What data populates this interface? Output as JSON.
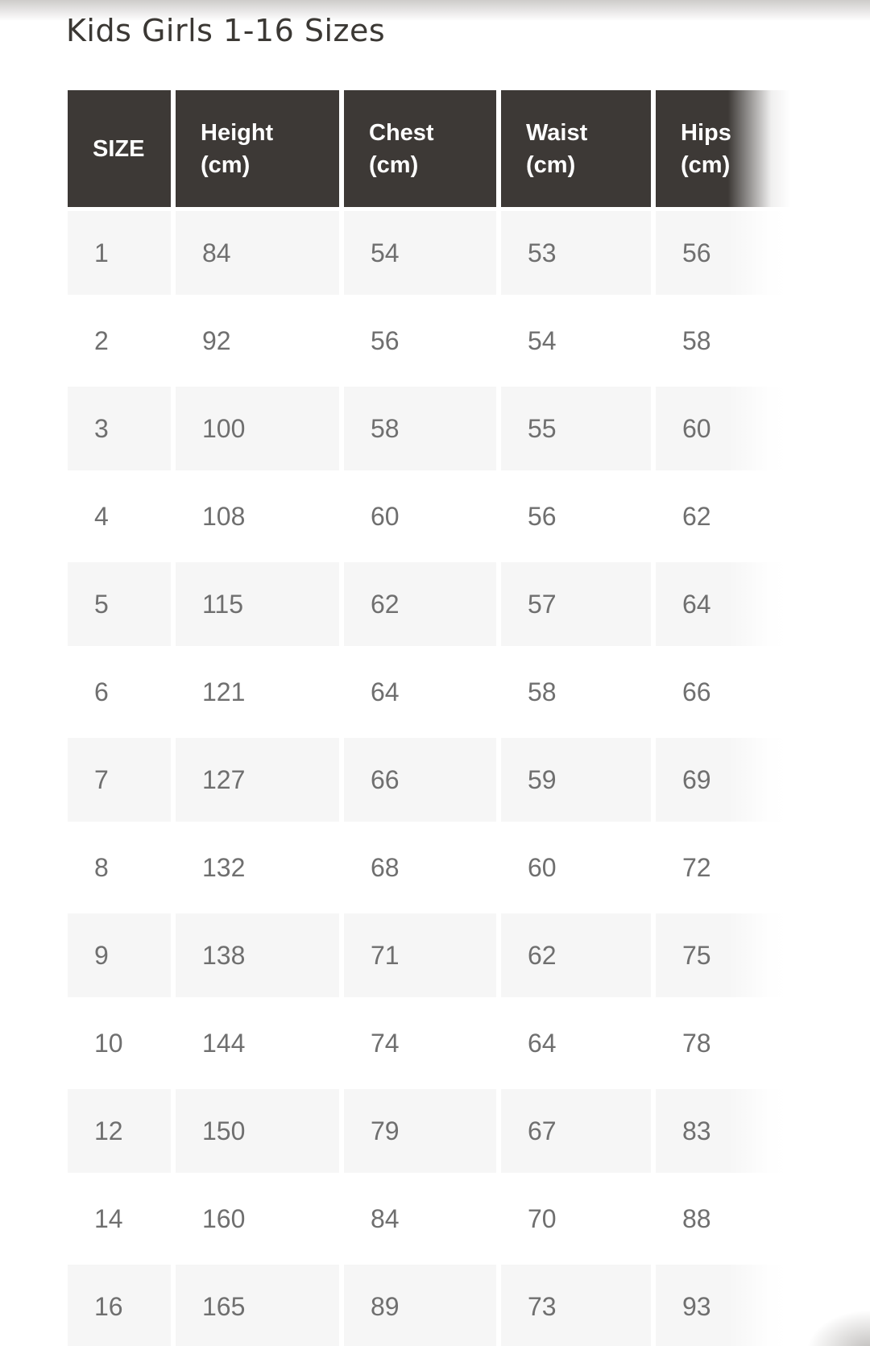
{
  "page": {
    "title": "Kids Girls 1-16 Sizes"
  },
  "colors": {
    "header_bg": "#3d3936",
    "header_text": "#ffffff",
    "row_alt_bg": "#f6f6f6",
    "row_bg": "#ffffff",
    "cell_text": "#6f6f6f",
    "title_text": "#3b3834"
  },
  "table": {
    "headers": [
      {
        "label": "SIZE",
        "unit": ""
      },
      {
        "label": "Height",
        "unit": "(cm)"
      },
      {
        "label": "Chest",
        "unit": "(cm)"
      },
      {
        "label": "Waist",
        "unit": "(cm)"
      },
      {
        "label": "Hips",
        "unit": "(cm)"
      }
    ],
    "rows": [
      {
        "cells": [
          "1",
          "84",
          "54",
          "53",
          "56"
        ]
      },
      {
        "cells": [
          "2",
          "92",
          "56",
          "54",
          "58"
        ]
      },
      {
        "cells": [
          "3",
          "100",
          "58",
          "55",
          "60"
        ]
      },
      {
        "cells": [
          "4",
          "108",
          "60",
          "56",
          "62"
        ]
      },
      {
        "cells": [
          "5",
          "115",
          "62",
          "57",
          "64"
        ]
      },
      {
        "cells": [
          "6",
          "121",
          "64",
          "58",
          "66"
        ]
      },
      {
        "cells": [
          "7",
          "127",
          "66",
          "59",
          "69"
        ]
      },
      {
        "cells": [
          "8",
          "132",
          "68",
          "60",
          "72"
        ]
      },
      {
        "cells": [
          "9",
          "138",
          "71",
          "62",
          "75"
        ]
      },
      {
        "cells": [
          "10",
          "144",
          "74",
          "64",
          "78"
        ]
      },
      {
        "cells": [
          "12",
          "150",
          "79",
          "67",
          "83"
        ]
      },
      {
        "cells": [
          "14",
          "160",
          "84",
          "70",
          "88"
        ]
      },
      {
        "cells": [
          "16",
          "165",
          "89",
          "73",
          "93"
        ]
      }
    ]
  }
}
